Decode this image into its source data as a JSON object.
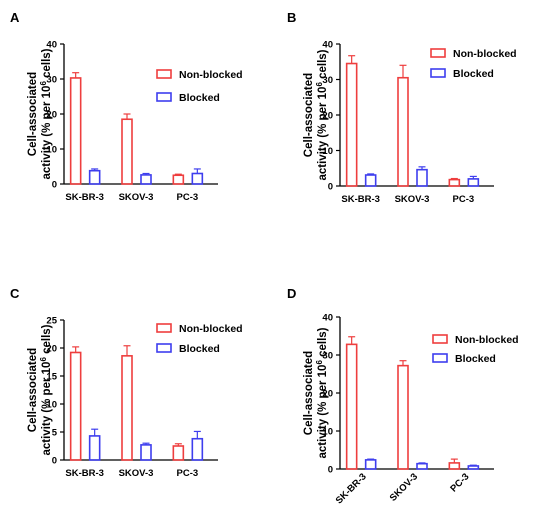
{
  "colors": {
    "non_blocked": "#ee3e3e",
    "blocked": "#3e3eee",
    "axis": "#000000"
  },
  "chart_data": [
    {
      "panel": "A",
      "type": "bar",
      "categories": [
        "SK-BR-3",
        "SKOV-3",
        "PC-3"
      ],
      "series": [
        {
          "name": "Non-blocked",
          "values": [
            30.3,
            18.5,
            2.5
          ],
          "errors": [
            1.5,
            1.5,
            0.3
          ]
        },
        {
          "name": "Blocked",
          "values": [
            3.8,
            2.6,
            3.0
          ],
          "errors": [
            0.5,
            0.4,
            1.3
          ]
        }
      ],
      "ylim": [
        0,
        40
      ],
      "yticks": [
        0,
        10,
        20,
        30,
        40
      ],
      "ylabel_line1": "Cell-associated",
      "ylabel_line2": "activity (% per 10",
      "ylabel_sup": "6",
      "ylabel_line2_end": " cells)",
      "legend": "right",
      "cat_rotated": false
    },
    {
      "panel": "B",
      "type": "bar",
      "categories": [
        "SK-BR-3",
        "SKOV-3",
        "PC-3"
      ],
      "series": [
        {
          "name": "Non-blocked",
          "values": [
            34.5,
            30.5,
            1.8
          ],
          "errors": [
            2.2,
            3.5,
            0.3
          ]
        },
        {
          "name": "Blocked",
          "values": [
            3.1,
            4.6,
            2.0
          ],
          "errors": [
            0.3,
            0.8,
            0.7
          ]
        }
      ],
      "ylim": [
        0,
        40
      ],
      "yticks": [
        0,
        10,
        20,
        30,
        40
      ],
      "ylabel_line1": "Cell-associated",
      "ylabel_line2": "activity (% per 10",
      "ylabel_sup": "6",
      "ylabel_line2_end": " cells)",
      "legend": "top-right",
      "cat_rotated": false
    },
    {
      "panel": "C",
      "type": "bar",
      "categories": [
        "SK-BR-3",
        "SKOV-3",
        "PC-3"
      ],
      "series": [
        {
          "name": "Non-blocked",
          "values": [
            19.2,
            18.6,
            2.5
          ],
          "errors": [
            1.0,
            1.8,
            0.4
          ]
        },
        {
          "name": "Blocked",
          "values": [
            4.3,
            2.7,
            3.8
          ],
          "errors": [
            1.2,
            0.3,
            1.3
          ]
        }
      ],
      "ylim": [
        0,
        25
      ],
      "yticks": [
        0,
        5,
        10,
        15,
        20,
        25
      ],
      "ylabel_line1": "Cell-associated",
      "ylabel_line2": "activity (% per 10",
      "ylabel_sup": "6",
      "ylabel_line2_end": " cells)",
      "legend": "right",
      "cat_rotated": false
    },
    {
      "panel": "D",
      "type": "bar",
      "categories": [
        "SK-BR-3",
        "SKOV-3",
        "PC-3"
      ],
      "series": [
        {
          "name": "Non-blocked",
          "values": [
            32.8,
            27.2,
            1.6
          ],
          "errors": [
            2.0,
            1.3,
            1.0
          ]
        },
        {
          "name": "Blocked",
          "values": [
            2.4,
            1.4,
            0.8
          ],
          "errors": [
            0.2,
            0.2,
            0.2
          ]
        }
      ],
      "ylim": [
        0,
        40
      ],
      "yticks": [
        0,
        10,
        20,
        30,
        40
      ],
      "ylabel_line1": "Cell-associated",
      "ylabel_line2": "activity (% per 10",
      "ylabel_sup": "6",
      "ylabel_line2_end": " cells)",
      "legend": "top-right",
      "cat_rotated": true
    }
  ]
}
